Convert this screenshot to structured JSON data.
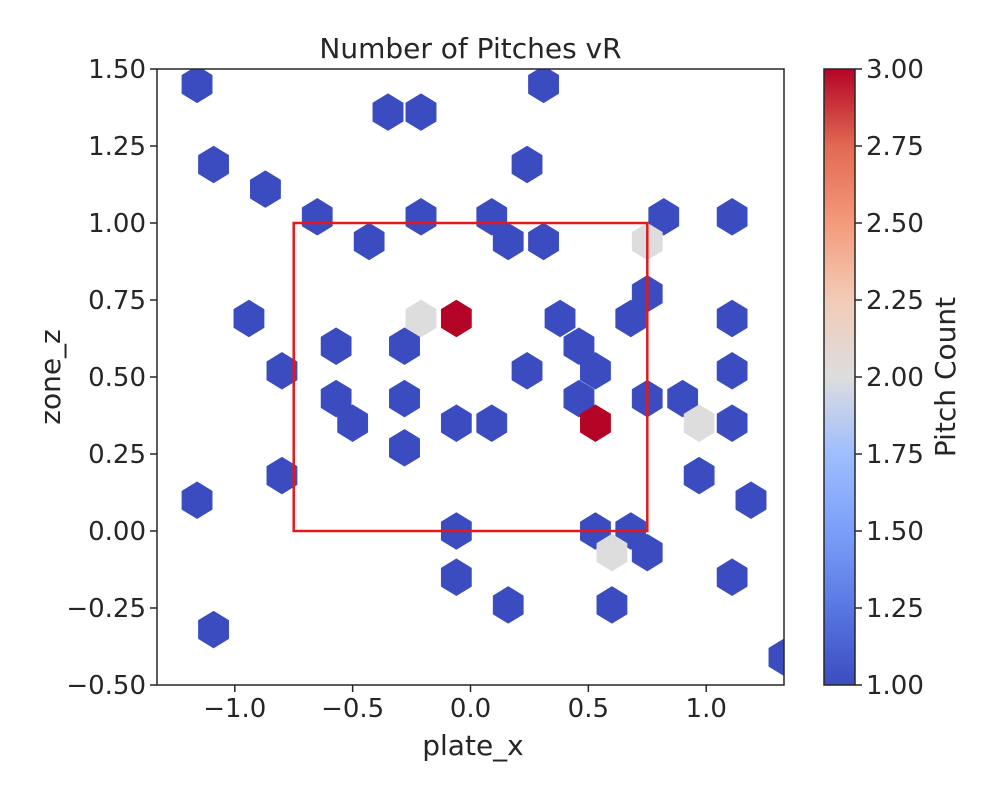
{
  "chart_data": {
    "type": "hexbin",
    "title": "Number of Pitches vR",
    "xlabel": "plate_x",
    "ylabel": "zone_z",
    "xlim": [
      -1.33,
      1.33
    ],
    "ylim": [
      -0.5,
      1.5
    ],
    "xticks": [
      -1.0,
      -0.5,
      0.0,
      0.5,
      1.0
    ],
    "xtick_labels": [
      "−1.0",
      "−0.5",
      "0.0",
      "0.5",
      "1.0"
    ],
    "yticks": [
      -0.5,
      -0.25,
      0.0,
      0.25,
      0.5,
      0.75,
      1.0,
      1.25,
      1.5
    ],
    "ytick_labels": [
      "−0.50",
      "−0.25",
      "0.00",
      "0.25",
      "0.50",
      "0.75",
      "1.00",
      "1.25",
      "1.50"
    ],
    "strike_zone": {
      "x": [
        -0.75,
        0.75
      ],
      "z": [
        0.0,
        1.0
      ],
      "color": "#e3191c"
    },
    "colorbar": {
      "label": "Pitch Count",
      "range": [
        1.0,
        3.0
      ],
      "colormap": "coolwarm",
      "low_color": "#3b4cc0",
      "mid_color": "#dddddd",
      "high_color": "#b40426",
      "ticks": [
        1.0,
        1.25,
        1.5,
        1.75,
        2.0,
        2.25,
        2.5,
        2.75,
        3.0
      ],
      "tick_labels": [
        "1.00",
        "1.25",
        "1.50",
        "1.75",
        "2.00",
        "2.25",
        "2.50",
        "2.75",
        "3.00"
      ]
    },
    "bins": [
      {
        "x": -1.16,
        "z": 1.45,
        "count": 1
      },
      {
        "x": -0.35,
        "z": 1.36,
        "count": 1
      },
      {
        "x": -0.21,
        "z": 1.36,
        "count": 1
      },
      {
        "x": 0.31,
        "z": 1.45,
        "count": 1
      },
      {
        "x": -1.09,
        "z": 1.19,
        "count": 1
      },
      {
        "x": 0.24,
        "z": 1.19,
        "count": 1
      },
      {
        "x": -0.87,
        "z": 1.11,
        "count": 1
      },
      {
        "x": -0.65,
        "z": 1.02,
        "count": 1
      },
      {
        "x": -0.21,
        "z": 1.02,
        "count": 1
      },
      {
        "x": 0.09,
        "z": 1.02,
        "count": 1
      },
      {
        "x": 0.82,
        "z": 1.02,
        "count": 1
      },
      {
        "x": 1.11,
        "z": 1.02,
        "count": 1
      },
      {
        "x": -0.43,
        "z": 0.94,
        "count": 1
      },
      {
        "x": 0.16,
        "z": 0.94,
        "count": 1
      },
      {
        "x": 0.31,
        "z": 0.94,
        "count": 1
      },
      {
        "x": 0.75,
        "z": 0.94,
        "count": 2
      },
      {
        "x": 0.75,
        "z": 0.77,
        "count": 1
      },
      {
        "x": -0.94,
        "z": 0.69,
        "count": 1
      },
      {
        "x": -0.21,
        "z": 0.69,
        "count": 2
      },
      {
        "x": -0.06,
        "z": 0.69,
        "count": 3
      },
      {
        "x": 0.38,
        "z": 0.69,
        "count": 1
      },
      {
        "x": 0.68,
        "z": 0.69,
        "count": 1
      },
      {
        "x": 1.11,
        "z": 0.69,
        "count": 1
      },
      {
        "x": -0.57,
        "z": 0.6,
        "count": 1
      },
      {
        "x": -0.28,
        "z": 0.6,
        "count": 1
      },
      {
        "x": 0.46,
        "z": 0.6,
        "count": 1
      },
      {
        "x": -0.8,
        "z": 0.52,
        "count": 1
      },
      {
        "x": 0.24,
        "z": 0.52,
        "count": 1
      },
      {
        "x": 0.53,
        "z": 0.52,
        "count": 1
      },
      {
        "x": 1.11,
        "z": 0.52,
        "count": 1
      },
      {
        "x": -0.57,
        "z": 0.43,
        "count": 1
      },
      {
        "x": -0.28,
        "z": 0.43,
        "count": 1
      },
      {
        "x": 0.46,
        "z": 0.43,
        "count": 1
      },
      {
        "x": 0.75,
        "z": 0.43,
        "count": 1
      },
      {
        "x": 0.9,
        "z": 0.43,
        "count": 1
      },
      {
        "x": -0.5,
        "z": 0.35,
        "count": 1
      },
      {
        "x": -0.06,
        "z": 0.35,
        "count": 1
      },
      {
        "x": 0.09,
        "z": 0.35,
        "count": 1
      },
      {
        "x": 0.53,
        "z": 0.35,
        "count": 3
      },
      {
        "x": 0.97,
        "z": 0.35,
        "count": 2
      },
      {
        "x": 1.11,
        "z": 0.35,
        "count": 1
      },
      {
        "x": -0.28,
        "z": 0.27,
        "count": 1
      },
      {
        "x": -0.8,
        "z": 0.18,
        "count": 1
      },
      {
        "x": 0.97,
        "z": 0.18,
        "count": 1
      },
      {
        "x": -1.16,
        "z": 0.1,
        "count": 1
      },
      {
        "x": 1.19,
        "z": 0.1,
        "count": 1
      },
      {
        "x": -0.06,
        "z": 0.0,
        "count": 1
      },
      {
        "x": 0.53,
        "z": 0.0,
        "count": 1
      },
      {
        "x": 0.68,
        "z": 0.0,
        "count": 1
      },
      {
        "x": 0.6,
        "z": -0.07,
        "count": 2
      },
      {
        "x": 0.75,
        "z": -0.07,
        "count": 1
      },
      {
        "x": -0.06,
        "z": -0.15,
        "count": 1
      },
      {
        "x": 1.11,
        "z": -0.15,
        "count": 1
      },
      {
        "x": 0.16,
        "z": -0.24,
        "count": 1
      },
      {
        "x": 0.6,
        "z": -0.24,
        "count": 1
      },
      {
        "x": -1.09,
        "z": -0.32,
        "count": 1
      },
      {
        "x": 1.33,
        "z": -0.41,
        "count": 1
      }
    ]
  }
}
